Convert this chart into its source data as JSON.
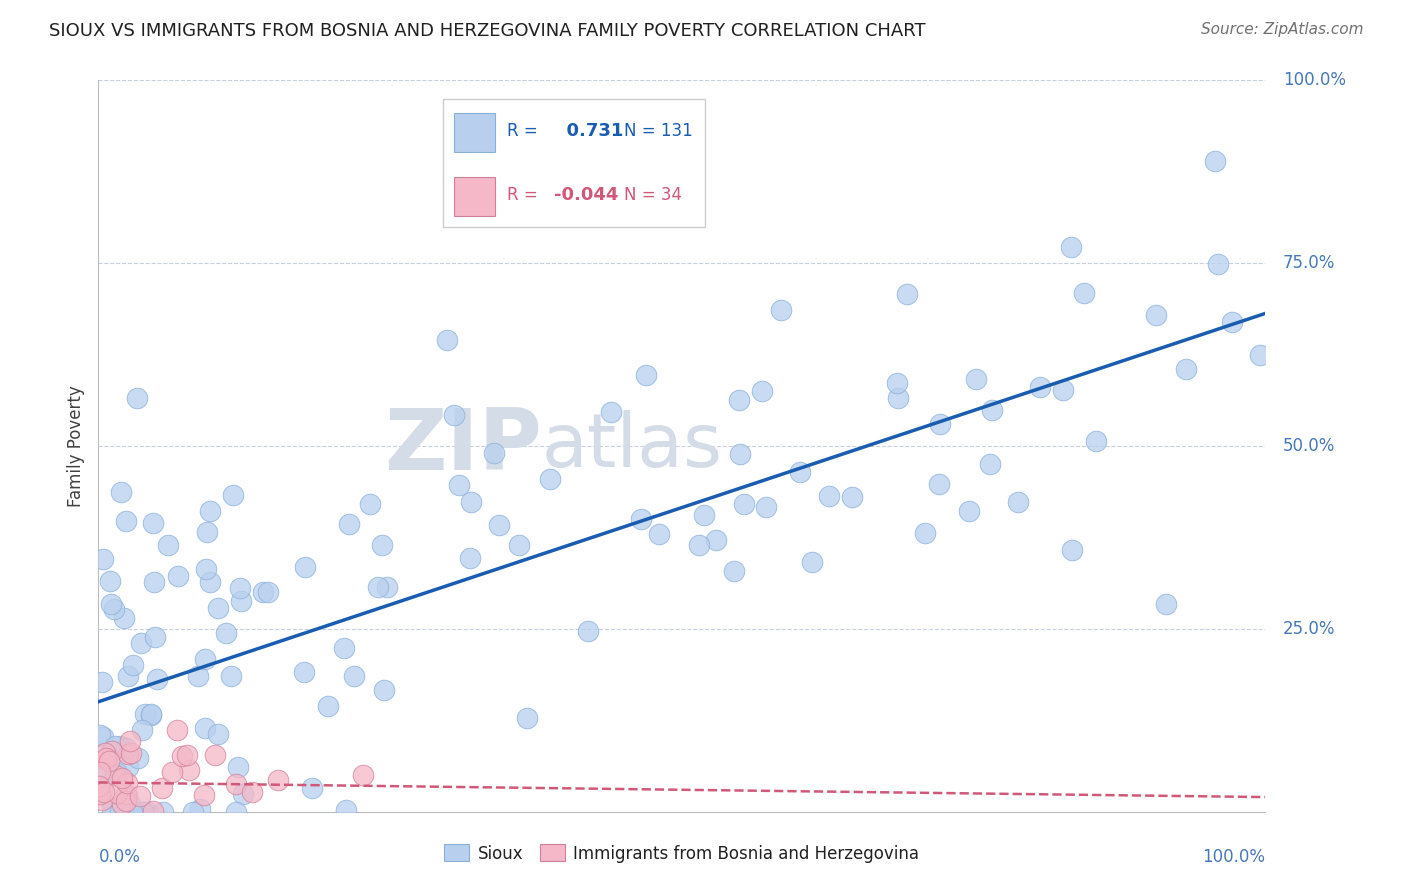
{
  "title": "SIOUX VS IMMIGRANTS FROM BOSNIA AND HERZEGOVINA FAMILY POVERTY CORRELATION CHART",
  "source": "Source: ZipAtlas.com",
  "ylabel": "Family Poverty",
  "sioux_color": "#b8d0ee",
  "sioux_edge_color": "#8ab0d8",
  "sioux_line_color": "#1a5cb0",
  "bosnia_color": "#f4b8c8",
  "bosnia_edge_color": "#d08098",
  "bosnia_line_color": "#d05878",
  "watermark": "ZIPatlas",
  "background_color": "#ffffff",
  "grid_color": "#c8d0dc",
  "title_color": "#202020",
  "ytick_color": "#4878b8",
  "legend_r1": "0.731",
  "legend_n1": "131",
  "legend_r2": "-0.044",
  "legend_n2": "34"
}
